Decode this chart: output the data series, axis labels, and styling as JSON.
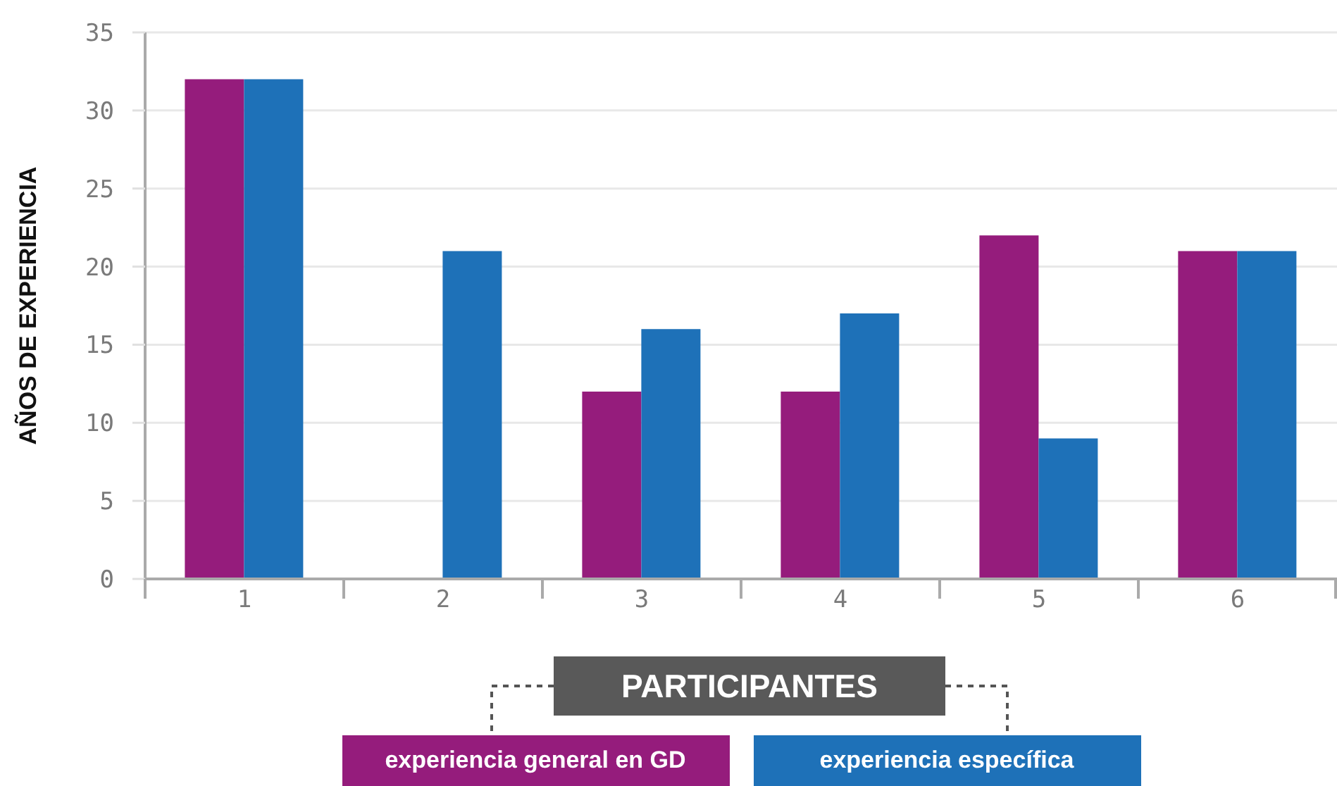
{
  "chart_data": {
    "type": "bar",
    "ylabel": "AÑOS DE EXPERIENCIA",
    "xlabel": "PARTICIPANTES",
    "categories": [
      "1",
      "2",
      "3",
      "4",
      "5",
      "6"
    ],
    "series": [
      {
        "name": "experiencia general en GD",
        "color": "#951c7c",
        "values": [
          32,
          0,
          12,
          12,
          22,
          21
        ]
      },
      {
        "name": "experiencia específica",
        "color": "#1e71b8",
        "values": [
          32,
          21,
          16,
          17,
          9,
          21
        ]
      }
    ],
    "ylim": [
      0,
      35
    ],
    "yticks": [
      0,
      5,
      10,
      15,
      20,
      25,
      30,
      35
    ],
    "grid": "y",
    "legend": "bottom"
  }
}
